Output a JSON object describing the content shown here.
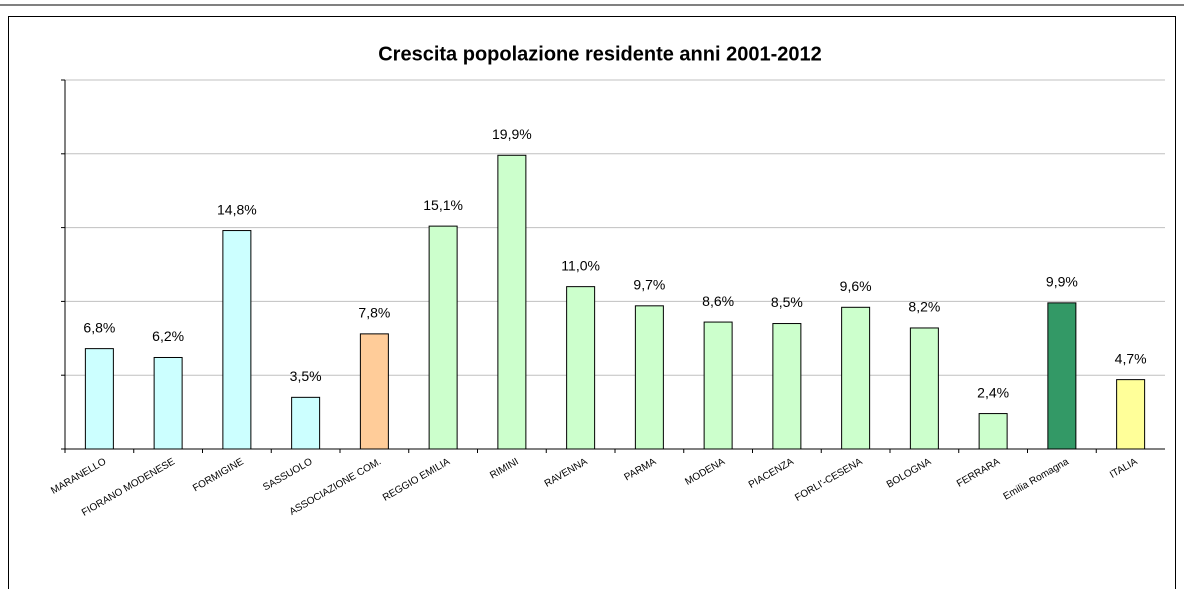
{
  "chart_data": {
    "type": "bar",
    "title": "Crescita popolazione residente anni 2001-2012",
    "categories": [
      "MARANELLO",
      "FIORANO MODENESE",
      "FORMIGINE",
      "SASSUOLO",
      "ASSOCIAZIONE COM.",
      "REGGIO EMILIA",
      "RIMINI",
      "RAVENNA",
      "PARMA",
      "MODENA",
      "PIACENZA",
      "FORLI'-CESENA",
      "BOLOGNA",
      "FERRARA",
      "Emilia Romagna",
      "ITALIA"
    ],
    "values": [
      6.8,
      6.2,
      14.8,
      3.5,
      7.8,
      15.1,
      19.9,
      11.0,
      9.7,
      8.6,
      8.5,
      9.6,
      8.2,
      2.4,
      9.9,
      4.7
    ],
    "value_labels": [
      "6,8%",
      "6,2%",
      "14,8%",
      "3,5%",
      "7,8%",
      "15,1%",
      "19,9%",
      "11,0%",
      "9,7%",
      "8,6%",
      "8,5%",
      "9,6%",
      "8,2%",
      "2,4%",
      "9,9%",
      "4,7%"
    ],
    "colors": [
      "#ccffff",
      "#ccffff",
      "#ccffff",
      "#ccffff",
      "#ffcc99",
      "#ccffcc",
      "#ccffcc",
      "#ccffcc",
      "#ccffcc",
      "#ccffcc",
      "#ccffcc",
      "#ccffcc",
      "#ccffcc",
      "#ccffcc",
      "#339966",
      "#ffff99"
    ],
    "ylim": [
      0,
      25
    ],
    "yticks": [
      0,
      5,
      10,
      15,
      20,
      25
    ],
    "grid": true
  }
}
